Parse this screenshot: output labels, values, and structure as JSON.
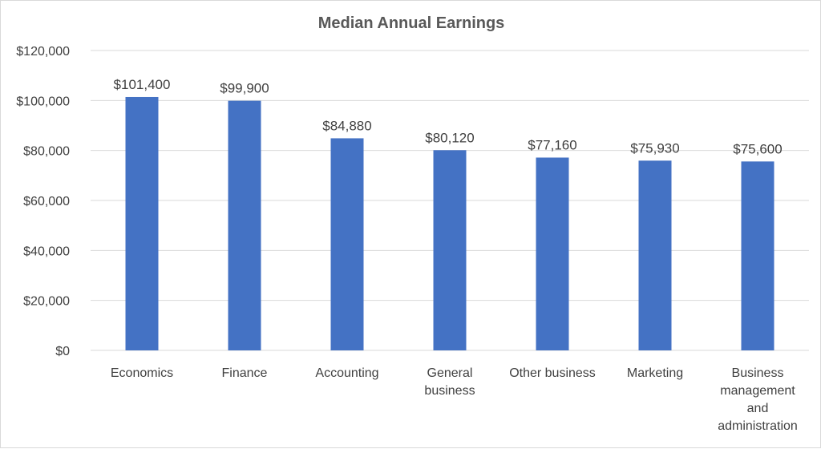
{
  "chart_data": {
    "type": "bar",
    "title": "Median Annual Earnings",
    "xlabel": "",
    "ylabel": "",
    "ylim": [
      0,
      120000
    ],
    "y_ticks": [
      0,
      20000,
      40000,
      60000,
      80000,
      100000,
      120000
    ],
    "y_tick_labels": [
      "$0",
      "$20,000",
      "$40,000",
      "$60,000",
      "$80,000",
      "$100,000",
      "$120,000"
    ],
    "categories": [
      [
        "Economics"
      ],
      [
        "Finance"
      ],
      [
        "Accounting"
      ],
      [
        "General",
        "business"
      ],
      [
        "Other business"
      ],
      [
        "Marketing"
      ],
      [
        "Business",
        "management",
        "and",
        "administration"
      ]
    ],
    "values": [
      101400,
      99900,
      84880,
      80120,
      77160,
      75930,
      75600
    ],
    "data_labels": [
      "$101,400",
      "$99,900",
      "$84,880",
      "$80,120",
      "$77,160",
      "$75,930",
      "$75,600"
    ],
    "bar_color": "#4472C4",
    "grid": true,
    "legend": "none"
  }
}
